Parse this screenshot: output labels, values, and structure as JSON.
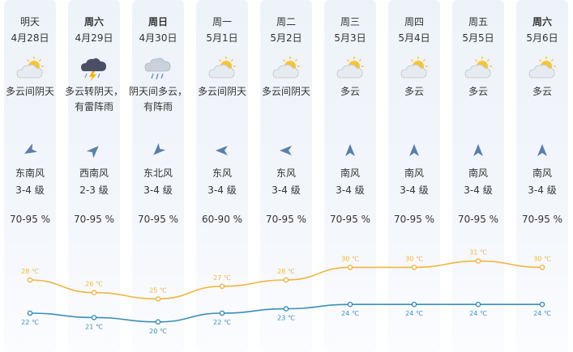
{
  "days": [
    {
      "day": "明天",
      "bold": false,
      "date": "4月28日",
      "icon": "partly-cloudy-icon",
      "condition": "多云间阴天",
      "wind_dir": "东南风",
      "wind_level": "3-4 级",
      "wind_deg": -120,
      "humidity": "70-95 %",
      "high": "28 ℃",
      "low": "22 ℃",
      "high_v": 28,
      "low_v": 22
    },
    {
      "day": "周六",
      "bold": true,
      "date": "4月29日",
      "icon": "thunderstorm-icon",
      "condition": "多云转阴天，有雷阵雨",
      "wind_dir": "西南风",
      "wind_level": "2-3 级",
      "wind_deg": 45,
      "humidity": "70-95 %",
      "high": "26 ℃",
      "low": "21 ℃",
      "high_v": 26,
      "low_v": 21
    },
    {
      "day": "周日",
      "bold": true,
      "date": "4月30日",
      "icon": "rain-cloud-icon",
      "condition": "阴天间多云，有阵雨",
      "wind_dir": "东北风",
      "wind_level": "3-4 级",
      "wind_deg": -135,
      "humidity": "70-95 %",
      "high": "25 ℃",
      "low": "20 ℃",
      "high_v": 25,
      "low_v": 20
    },
    {
      "day": "周一",
      "bold": false,
      "date": "5月1日",
      "icon": "partly-cloudy-icon",
      "condition": "多云间阴天",
      "wind_dir": "东风",
      "wind_level": "3-4 级",
      "wind_deg": -90,
      "humidity": "60-90 %",
      "high": "27 ℃",
      "low": "22 ℃",
      "high_v": 27,
      "low_v": 22
    },
    {
      "day": "周二",
      "bold": false,
      "date": "5月2日",
      "icon": "partly-cloudy-icon",
      "condition": "多云间阴天",
      "wind_dir": "东风",
      "wind_level": "3-4 级",
      "wind_deg": -90,
      "humidity": "70-95 %",
      "high": "28 ℃",
      "low": "23 ℃",
      "high_v": 28,
      "low_v": 23
    },
    {
      "day": "周三",
      "bold": false,
      "date": "5月3日",
      "icon": "partly-cloudy-icon",
      "condition": "多云",
      "wind_dir": "南风",
      "wind_level": "3-4 级",
      "wind_deg": 0,
      "humidity": "70-95 %",
      "high": "30 ℃",
      "low": "24 ℃",
      "high_v": 30,
      "low_v": 24
    },
    {
      "day": "周四",
      "bold": false,
      "date": "5月4日",
      "icon": "partly-cloudy-icon",
      "condition": "多云",
      "wind_dir": "南风",
      "wind_level": "3-4 级",
      "wind_deg": 0,
      "humidity": "70-95 %",
      "high": "30 ℃",
      "low": "24 ℃",
      "high_v": 30,
      "low_v": 24
    },
    {
      "day": "周五",
      "bold": false,
      "date": "5月5日",
      "icon": "partly-cloudy-icon",
      "condition": "多云",
      "wind_dir": "南风",
      "wind_level": "3-4 级",
      "wind_deg": 0,
      "humidity": "70-95 %",
      "high": "31 ℃",
      "low": "24 ℃",
      "high_v": 31,
      "low_v": 24
    },
    {
      "day": "周六",
      "bold": true,
      "date": "5月6日",
      "icon": "partly-cloudy-icon",
      "condition": "多云",
      "wind_dir": "南风",
      "wind_level": "3-4 级",
      "wind_deg": 0,
      "humidity": "70-95 %",
      "high": "30 ℃",
      "low": "24 ℃",
      "high_v": 30,
      "low_v": 24
    }
  ],
  "colors": {
    "high_line": "#f0b640",
    "low_line": "#3a8fb7",
    "column_bg": "#f0f4fa",
    "arrow": "#5a7fa8"
  }
}
